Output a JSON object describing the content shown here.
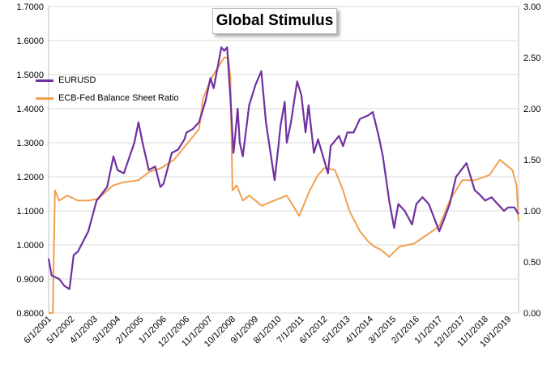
{
  "title": "Global Stimulus",
  "colors": {
    "eurusd": "#7030a0",
    "ratio": "#f0a050",
    "grid": "#d9d9d9",
    "right_axis_text": "#e08a20"
  },
  "chart_data": {
    "type": "line",
    "title": "Global Stimulus",
    "legend_position": "top-left",
    "grid": true,
    "x_range": [
      "2001-06-01",
      "2020-03-01"
    ],
    "x_ticks": [
      "6/1/2001",
      "5/1/2002",
      "4/1/2003",
      "3/1/2004",
      "2/1/2005",
      "1/1/2006",
      "12/1/2006",
      "11/1/2007",
      "10/1/2008",
      "9/1/2009",
      "8/1/2010",
      "7/1/2011",
      "6/1/2012",
      "5/1/2013",
      "4/1/2014",
      "3/1/2015",
      "2/1/2016",
      "1/1/2017",
      "12/1/2017",
      "11/1/2018",
      "10/1/2019"
    ],
    "y_left": {
      "min": 0.8,
      "max": 1.7,
      "ticks": [
        "0.8000",
        "0.9000",
        "1.0000",
        "1.1000",
        "1.2000",
        "1.3000",
        "1.4000",
        "1.5000",
        "1.6000",
        "1.7000"
      ]
    },
    "y_right": {
      "min": 0,
      "max": 3,
      "ticks": [
        "0.00",
        "0.50",
        "1.00",
        "1.50",
        "2.00",
        "2.50",
        "3.00"
      ]
    },
    "series": [
      {
        "name": "EURUSD",
        "axis": "left",
        "x": [
          "2001-06-01",
          "2001-07-15",
          "2001-11-01",
          "2002-01-15",
          "2002-04-01",
          "2002-06-01",
          "2002-08-01",
          "2003-01-01",
          "2003-05-01",
          "2003-10-01",
          "2004-01-01",
          "2004-03-01",
          "2004-06-01",
          "2004-11-01",
          "2004-12-31",
          "2005-03-01",
          "2005-06-01",
          "2005-09-01",
          "2005-11-15",
          "2006-01-01",
          "2006-05-01",
          "2006-08-01",
          "2006-11-01",
          "2006-12-01",
          "2007-03-01",
          "2007-06-01",
          "2007-09-01",
          "2007-11-15",
          "2008-01-01",
          "2008-04-22",
          "2008-06-01",
          "2008-07-15",
          "2008-09-01",
          "2008-10-15",
          "2008-11-01",
          "2008-12-15",
          "2009-01-15",
          "2009-03-01",
          "2009-06-01",
          "2009-09-01",
          "2009-11-25",
          "2010-02-01",
          "2010-06-07",
          "2010-08-01",
          "2010-09-01",
          "2010-11-01",
          "2010-12-01",
          "2011-02-01",
          "2011-05-01",
          "2011-07-01",
          "2011-09-01",
          "2011-10-15",
          "2012-01-01",
          "2012-03-01",
          "2012-07-24",
          "2012-09-01",
          "2013-01-01",
          "2013-03-01",
          "2013-05-01",
          "2013-08-01",
          "2013-11-01",
          "2014-03-01",
          "2014-05-08",
          "2014-08-01",
          "2014-10-01",
          "2015-01-01",
          "2015-03-15",
          "2015-05-15",
          "2015-08-15",
          "2015-12-01",
          "2016-02-01",
          "2016-05-01",
          "2016-08-01",
          "2016-12-31",
          "2017-03-01",
          "2017-06-01",
          "2017-09-01",
          "2018-02-01",
          "2018-06-01",
          "2018-08-01",
          "2018-11-01",
          "2019-02-01",
          "2019-05-01",
          "2019-08-01",
          "2019-10-01",
          "2020-01-01",
          "2020-03-01"
        ],
        "values": [
          0.96,
          0.91,
          0.9,
          0.88,
          0.87,
          0.97,
          0.98,
          1.04,
          1.13,
          1.17,
          1.26,
          1.22,
          1.21,
          1.3,
          1.36,
          1.3,
          1.22,
          1.23,
          1.17,
          1.18,
          1.27,
          1.28,
          1.31,
          1.33,
          1.34,
          1.36,
          1.42,
          1.49,
          1.46,
          1.58,
          1.57,
          1.58,
          1.43,
          1.27,
          1.3,
          1.4,
          1.3,
          1.26,
          1.41,
          1.47,
          1.51,
          1.36,
          1.19,
          1.29,
          1.35,
          1.42,
          1.3,
          1.36,
          1.48,
          1.44,
          1.33,
          1.41,
          1.27,
          1.31,
          1.21,
          1.29,
          1.32,
          1.29,
          1.33,
          1.33,
          1.37,
          1.38,
          1.39,
          1.32,
          1.26,
          1.13,
          1.05,
          1.12,
          1.1,
          1.06,
          1.12,
          1.14,
          1.12,
          1.04,
          1.07,
          1.12,
          1.2,
          1.24,
          1.16,
          1.15,
          1.13,
          1.14,
          1.12,
          1.1,
          1.11,
          1.11,
          1.09
        ]
      },
      {
        "name": "ECB-Fed Balance Sheet Ratio",
        "axis": "right",
        "x": [
          "2001-06-01",
          "2001-08-01",
          "2001-09-01",
          "2001-11-01",
          "2002-03-01",
          "2002-08-01",
          "2003-01-01",
          "2003-06-01",
          "2003-09-01",
          "2004-01-01",
          "2004-06-01",
          "2005-01-01",
          "2005-06-01",
          "2005-12-01",
          "2006-06-01",
          "2006-12-01",
          "2007-06-01",
          "2007-08-01",
          "2007-12-01",
          "2008-03-01",
          "2008-06-01",
          "2008-08-01",
          "2008-09-01",
          "2008-10-01",
          "2008-12-01",
          "2009-03-01",
          "2009-06-01",
          "2009-12-01",
          "2010-06-01",
          "2010-12-01",
          "2011-06-01",
          "2011-11-01",
          "2012-03-01",
          "2012-06-01",
          "2012-11-01",
          "2013-03-01",
          "2013-06-01",
          "2013-11-01",
          "2014-03-01",
          "2014-06-01",
          "2014-09-01",
          "2015-01-01",
          "2015-06-01",
          "2016-01-01",
          "2016-06-01",
          "2017-01-01",
          "2017-06-01",
          "2017-12-01",
          "2018-06-01",
          "2019-01-01",
          "2019-06-01",
          "2019-09-01",
          "2019-12-01",
          "2020-02-01",
          "2020-03-01"
        ],
        "values": [
          0,
          0,
          1.2,
          1.1,
          1.15,
          1.1,
          1.1,
          1.12,
          1.18,
          1.25,
          1.28,
          1.3,
          1.38,
          1.42,
          1.5,
          1.65,
          1.8,
          2.1,
          2.3,
          2.4,
          2.5,
          2.5,
          2.3,
          1.2,
          1.25,
          1.1,
          1.15,
          1.05,
          1.1,
          1.15,
          0.95,
          1.2,
          1.35,
          1.42,
          1.4,
          1.2,
          1,
          0.8,
          0.7,
          0.65,
          0.62,
          0.55,
          0.65,
          0.68,
          0.75,
          0.85,
          1.1,
          1.3,
          1.3,
          1.35,
          1.5,
          1.45,
          1.4,
          1.25,
          0.9
        ]
      }
    ]
  }
}
